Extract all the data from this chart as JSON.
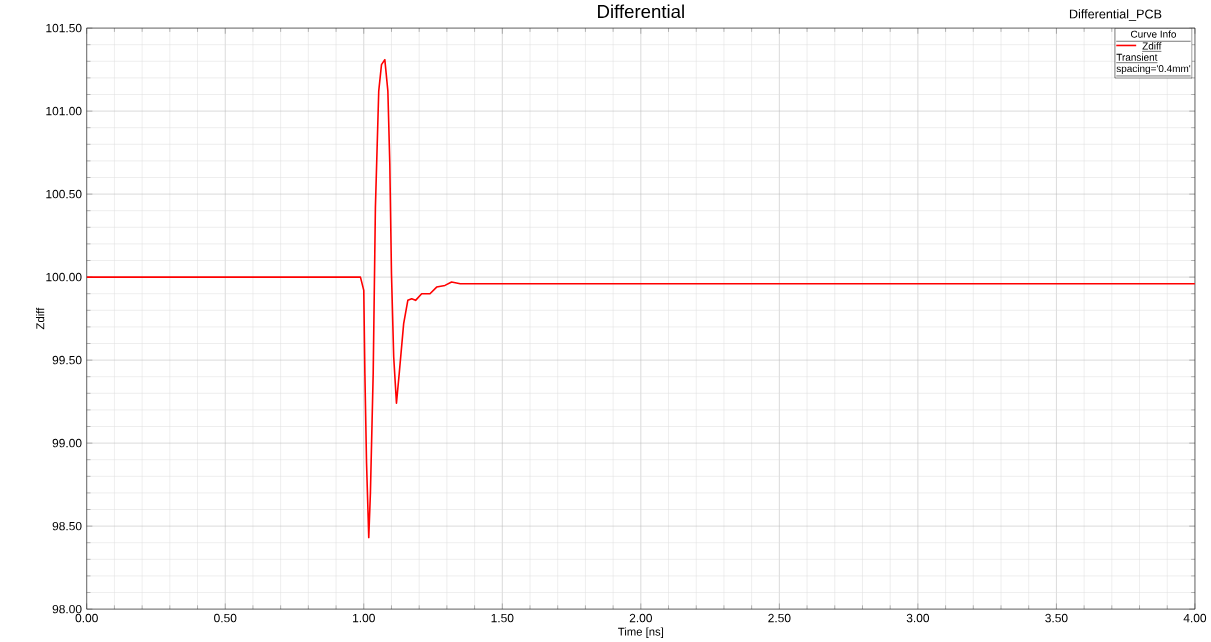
{
  "chart_data": {
    "type": "line",
    "title": "Differential",
    "xlabel": "Time [ns]",
    "ylabel": "Zdiff",
    "legend_title": "Curve Info",
    "annotations": [
      "Differential_PCB",
      "Transient",
      "spacing='0.4mm'"
    ],
    "series": [
      {
        "name": "Zdiff",
        "color": "#ff0000",
        "x": [
          0,
          0.988,
          1.0,
          1.004,
          1.01,
          1.018,
          1.024,
          1.034,
          1.042,
          1.054,
          1.064,
          1.076,
          1.087,
          1.094,
          1.1,
          1.108,
          1.118,
          1.128,
          1.144,
          1.159,
          1.173,
          1.187,
          1.209,
          1.239,
          1.263,
          1.293,
          1.317,
          1.348,
          4.0
        ],
        "values": [
          100.0,
          100.0,
          99.92,
          99.42,
          98.88,
          98.43,
          98.7,
          99.42,
          100.42,
          101.12,
          101.28,
          101.31,
          101.12,
          100.68,
          100.02,
          99.52,
          99.24,
          99.42,
          99.72,
          99.86,
          99.87,
          99.86,
          99.9,
          99.9,
          99.94,
          99.95,
          99.97,
          99.96,
          99.96
        ]
      }
    ],
    "xlim": [
      0,
      4
    ],
    "ylim": [
      98,
      101.5
    ],
    "xticks": [
      {
        "value": 0,
        "label": "0.00"
      },
      {
        "value": 0.5,
        "label": "0.50"
      },
      {
        "value": 1,
        "label": "1.00"
      },
      {
        "value": 1.5,
        "label": "1.50"
      },
      {
        "value": 2,
        "label": "2.00"
      },
      {
        "value": 2.5,
        "label": "2.50"
      },
      {
        "value": 3,
        "label": "3.00"
      },
      {
        "value": 3.5,
        "label": "3.50"
      },
      {
        "value": 4,
        "label": "4.00"
      }
    ],
    "yticks": [
      {
        "value": 98,
        "label": "98.00"
      },
      {
        "value": 98.5,
        "label": "98.50"
      },
      {
        "value": 99,
        "label": "99.00"
      },
      {
        "value": 99.5,
        "label": "99.50"
      },
      {
        "value": 100,
        "label": "100.00"
      },
      {
        "value": 100.5,
        "label": "100.50"
      },
      {
        "value": 101,
        "label": "101.00"
      },
      {
        "value": 101.5,
        "label": "101.50"
      }
    ],
    "grid": true,
    "legend": "top right",
    "line_style": "solid"
  }
}
